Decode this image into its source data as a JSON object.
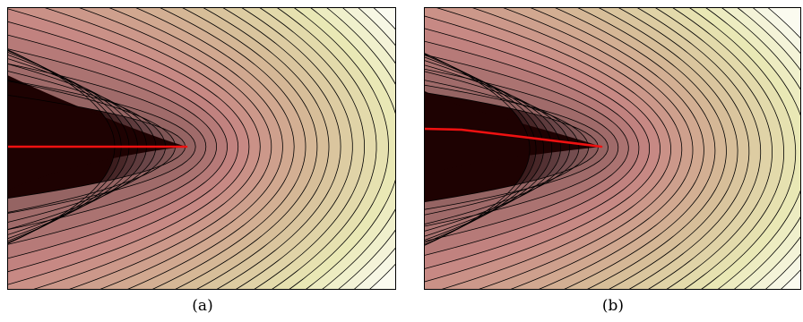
{
  "panels": [
    {
      "id": "a",
      "caption": "(a)",
      "crack": "straight"
    },
    {
      "id": "b",
      "caption": "(b)",
      "crack": "curved"
    }
  ],
  "colors": {
    "dark": "#1e0202",
    "mid_dark": "#6a4648",
    "mid": "#c68582",
    "mid_light": "#d8c09a",
    "light": "#e9e8b4",
    "lightest": "#fbfbf0",
    "crack": "#ee1111",
    "contour": "#000000"
  }
}
